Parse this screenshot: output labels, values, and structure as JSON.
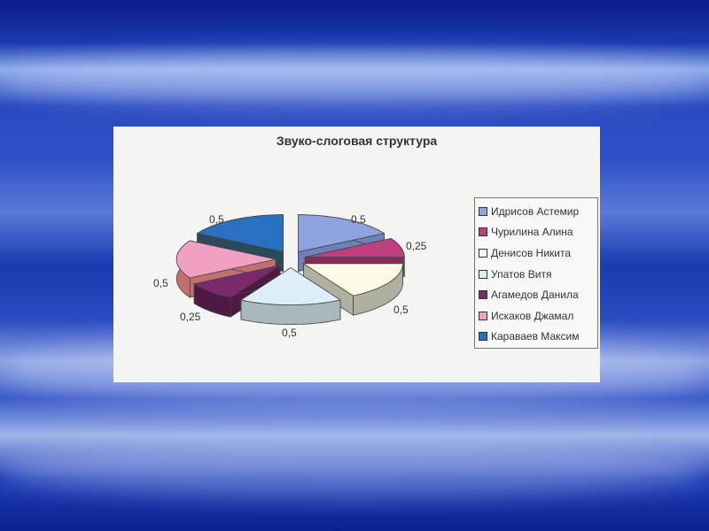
{
  "chart_data": {
    "type": "pie",
    "title": "Звуко-слоговая структура",
    "legend_position": "right",
    "three_d": true,
    "exploded": true,
    "categories": [
      "Идрисов Астемир",
      "Чурилина Алина",
      "Денисов Никита",
      "Упатов Витя",
      "Агамедов Данила",
      "Искаков Джамал",
      "Караваев Максим"
    ],
    "values": [
      0.5,
      0.25,
      0.5,
      0.5,
      0.25,
      0.5,
      0.5
    ],
    "data_labels": [
      "0,5",
      "0,25",
      "0,5",
      "0,5",
      "0,25",
      "0,5",
      "0,5"
    ],
    "colors": [
      "#8fa3e0",
      "#c0407f",
      "#fdfbe8",
      "#dceef6",
      "#7a2a6a",
      "#f0a0c0",
      "#2a70c0"
    ],
    "wall_colors": [
      "#6f80b8",
      "#8a2a5a",
      "#b0b0a0",
      "#a8b8bc",
      "#4e1a44",
      "#c07070",
      "#2a4a5a"
    ]
  }
}
